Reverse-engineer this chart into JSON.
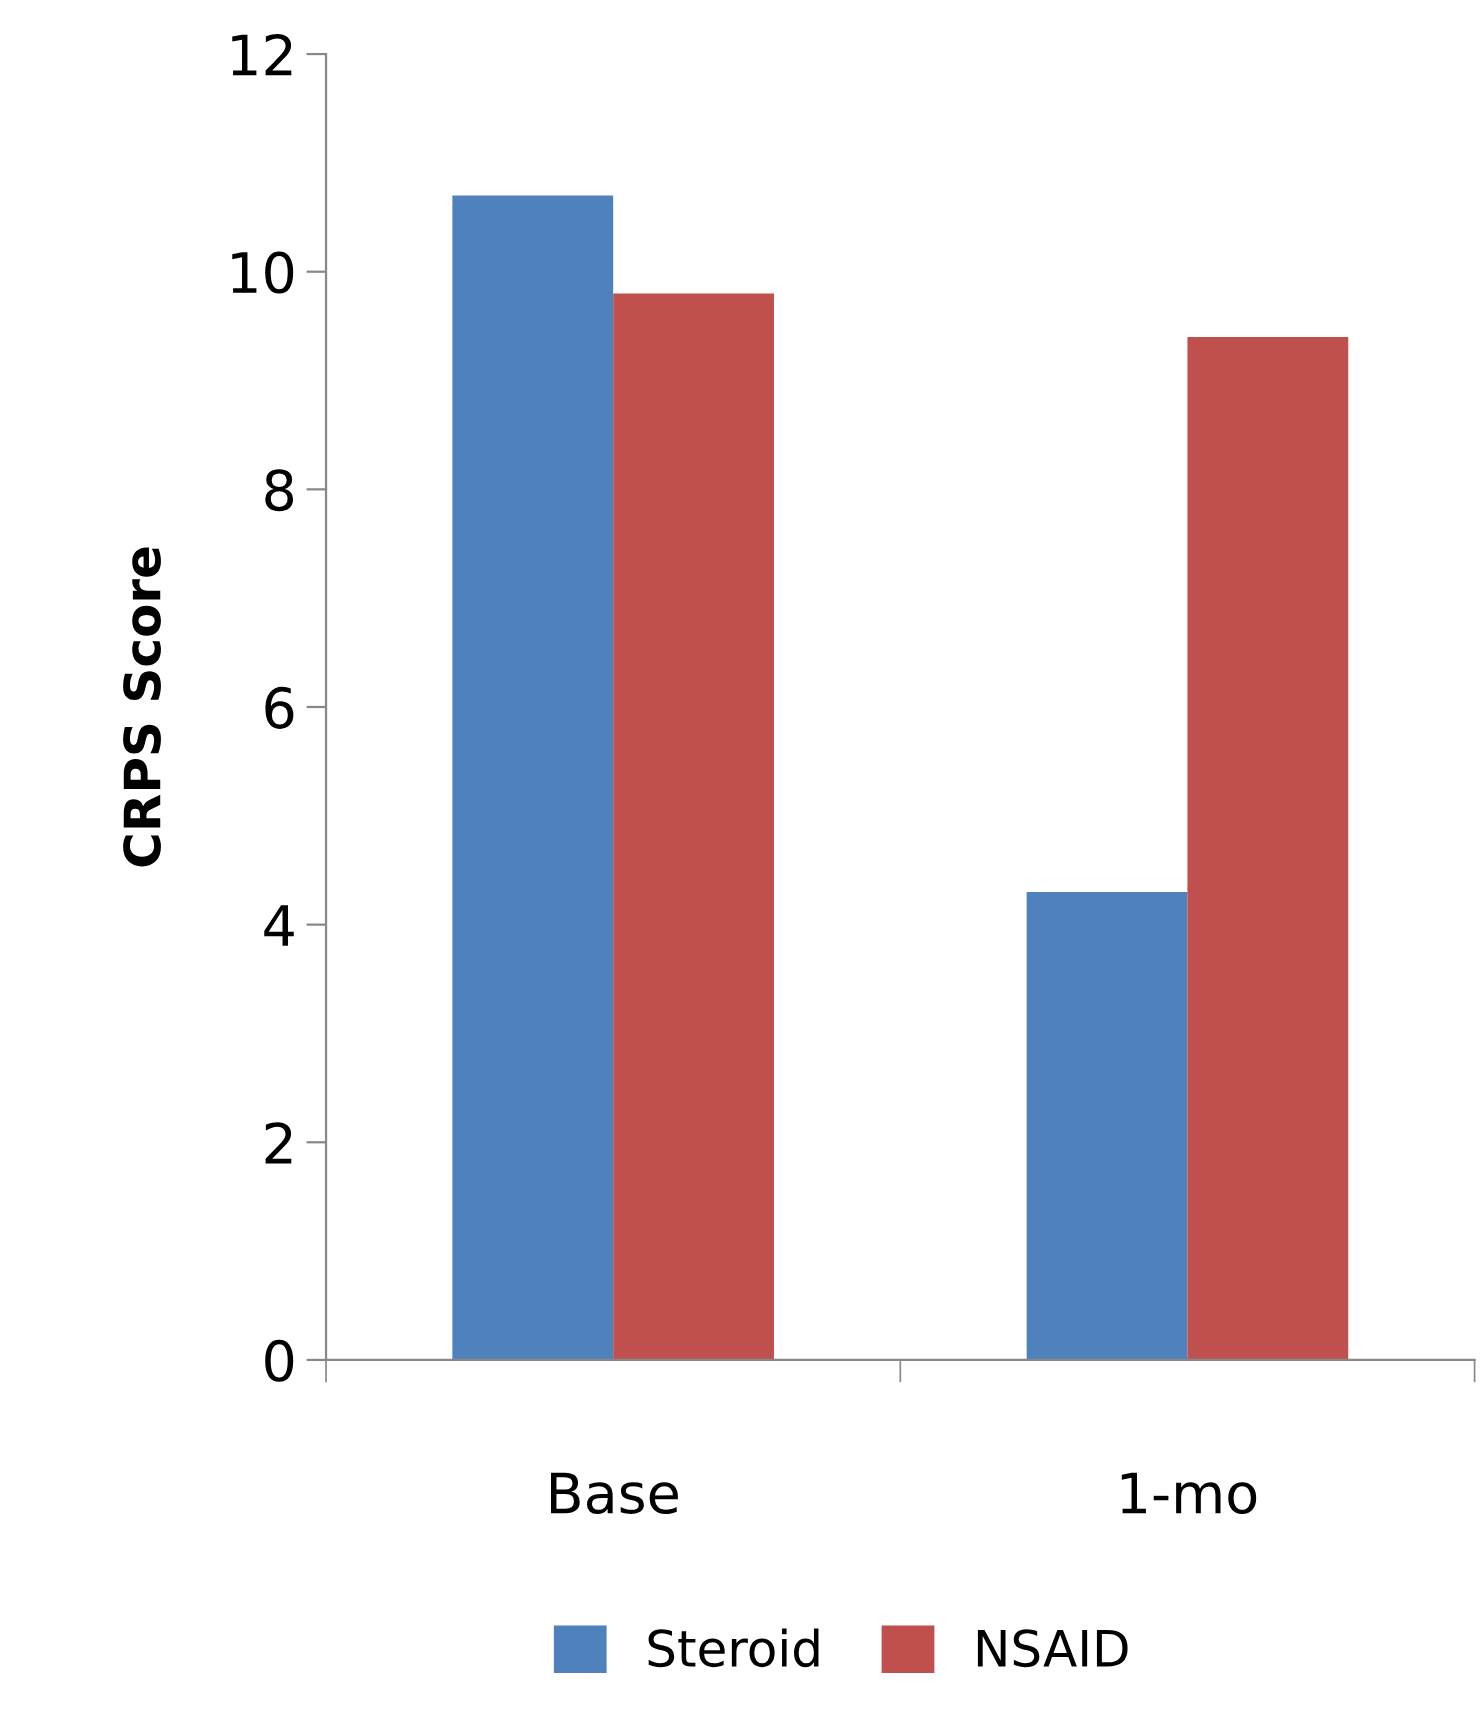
{
  "chart_data": {
    "type": "bar",
    "ylabel": "CRPS Score",
    "categories": [
      "Base",
      "1-mo"
    ],
    "series": [
      {
        "name": "Steroid",
        "color": "#4f81bd",
        "values": [
          10.7,
          4.3
        ]
      },
      {
        "name": "NSAID",
        "color": "#c0504d",
        "values": [
          9.8,
          9.4
        ]
      }
    ],
    "ylim": [
      0,
      12
    ],
    "yticks": [
      0,
      2,
      4,
      6,
      8,
      10,
      12
    ],
    "grid": false,
    "legend": "bottom"
  }
}
